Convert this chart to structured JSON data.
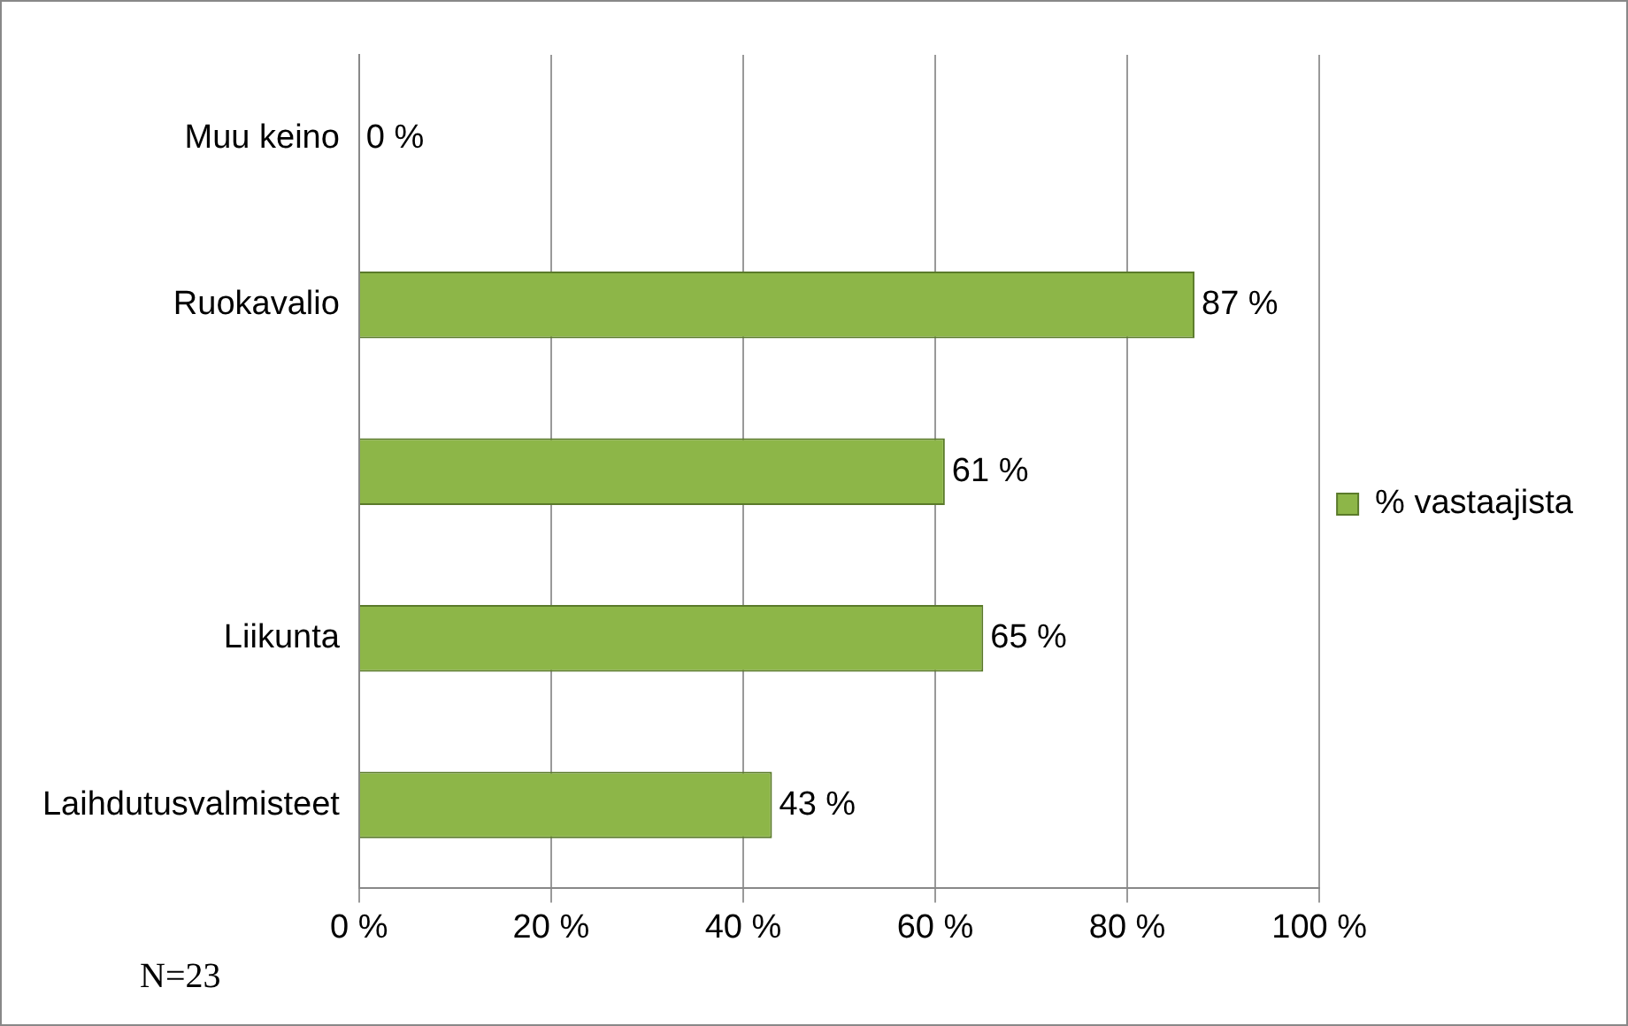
{
  "chart_data": {
    "type": "bar",
    "orientation": "horizontal",
    "categories": [
      "Muu keino",
      "Ruokavalio",
      null,
      "Liikunta",
      "Laihdutusvalmisteet"
    ],
    "series": [
      {
        "name": "% vastaajista",
        "color": "#8db648",
        "values": [
          0,
          87,
          61,
          65,
          43
        ],
        "value_labels": [
          "0 %",
          "87 %",
          "61 %",
          "65 %",
          "43 %"
        ]
      }
    ],
    "xlim": [
      0,
      100
    ],
    "xticks": [
      {
        "value": 0,
        "label": "0 %"
      },
      {
        "value": 20,
        "label": "20 %"
      },
      {
        "value": 40,
        "label": "40 %"
      },
      {
        "value": 60,
        "label": "60 %"
      },
      {
        "value": 80,
        "label": "80 %"
      },
      {
        "value": 100,
        "label": "100 %"
      }
    ],
    "grid": "x",
    "legend": "right",
    "annotations": [
      "N=23"
    ]
  }
}
